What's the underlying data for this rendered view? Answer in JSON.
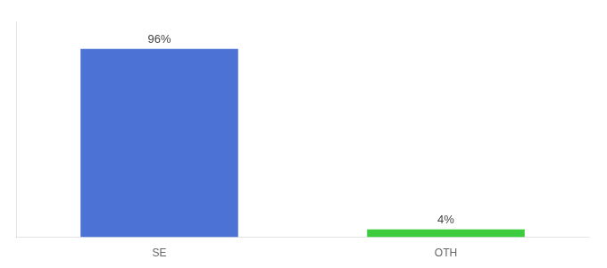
{
  "chart_data": {
    "type": "bar",
    "categories": [
      "SE",
      "OTH"
    ],
    "values": [
      96,
      4
    ],
    "value_labels": [
      "96%",
      "4%"
    ],
    "colors": [
      "#4b72d4",
      "#3dcc3d"
    ],
    "ylim": [
      0,
      110
    ],
    "grid": false,
    "data_labels": true,
    "tick_labels": "x"
  }
}
